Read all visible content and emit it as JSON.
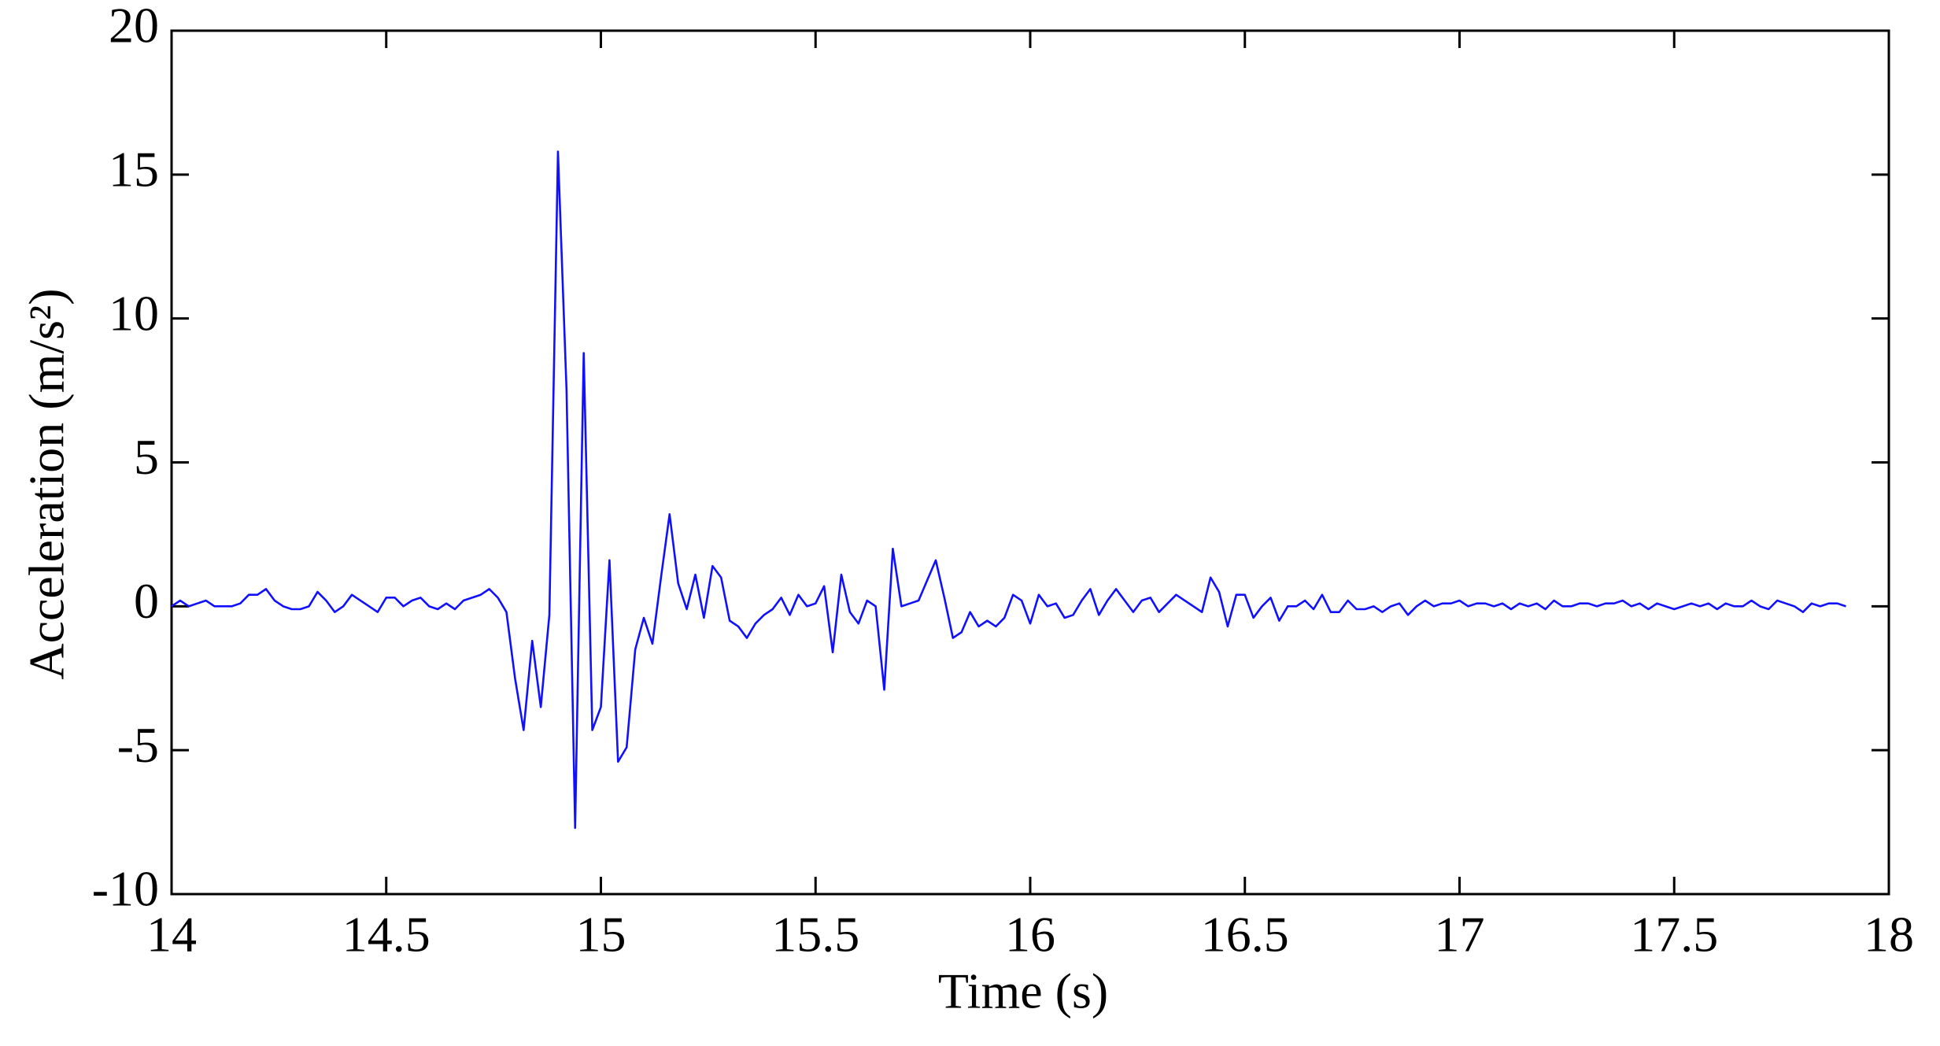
{
  "chart_data": {
    "type": "line",
    "xlabel": "Time (s)",
    "ylabel": "Acceleration (m/s²)",
    "xlim": [
      14,
      18
    ],
    "xticks": [
      14,
      14.5,
      15,
      15.5,
      16,
      16.5,
      17,
      17.5,
      18
    ],
    "ylim": [
      -10,
      20
    ],
    "yticks": [
      -10,
      -5,
      0,
      5,
      10,
      15,
      20
    ],
    "grid": false,
    "x": [
      14,
      14.02,
      14.04,
      14.06,
      14.08,
      14.1,
      14.12,
      14.14,
      14.16,
      14.18,
      14.2,
      14.22,
      14.24,
      14.26,
      14.28,
      14.3,
      14.32,
      14.34,
      14.36,
      14.38,
      14.4,
      14.42,
      14.44,
      14.46,
      14.48,
      14.5,
      14.52,
      14.54,
      14.56,
      14.58,
      14.6,
      14.62,
      14.64,
      14.66,
      14.68,
      14.7,
      14.72,
      14.74,
      14.76,
      14.78,
      14.8,
      14.82,
      14.84,
      14.86,
      14.88,
      14.9,
      14.92,
      14.94,
      14.96,
      14.98,
      15,
      15.02,
      15.04,
      15.06,
      15.08,
      15.1,
      15.12,
      15.14,
      15.16,
      15.18,
      15.2,
      15.22,
      15.24,
      15.26,
      15.28,
      15.3,
      15.32,
      15.34,
      15.36,
      15.38,
      15.4,
      15.42,
      15.44,
      15.46,
      15.48,
      15.5,
      15.52,
      15.54,
      15.56,
      15.58,
      15.6,
      15.62,
      15.64,
      15.66,
      15.68,
      15.7,
      15.72,
      15.74,
      15.76,
      15.78,
      15.8,
      15.82,
      15.84,
      15.86,
      15.88,
      15.9,
      15.92,
      15.94,
      15.96,
      15.98,
      16,
      16.02,
      16.04,
      16.06,
      16.08,
      16.1,
      16.12,
      16.14,
      16.16,
      16.18,
      16.2,
      16.22,
      16.24,
      16.26,
      16.28,
      16.3,
      16.32,
      16.34,
      16.36,
      16.38,
      16.4,
      16.42,
      16.44,
      16.46,
      16.48,
      16.5,
      16.52,
      16.54,
      16.56,
      16.58,
      16.6,
      16.62,
      16.64,
      16.66,
      16.68,
      16.7,
      16.72,
      16.74,
      16.76,
      16.78,
      16.8,
      16.82,
      16.84,
      16.86,
      16.88,
      16.9,
      16.92,
      16.94,
      16.96,
      16.98,
      17,
      17.02,
      17.04,
      17.06,
      17.08,
      17.1,
      17.12,
      17.14,
      17.16,
      17.18,
      17.2,
      17.22,
      17.24,
      17.26,
      17.28,
      17.3,
      17.32,
      17.34,
      17.36,
      17.38,
      17.4,
      17.42,
      17.44,
      17.46,
      17.48,
      17.5,
      17.52,
      17.54,
      17.56,
      17.58,
      17.6,
      17.62,
      17.64,
      17.66,
      17.68,
      17.7,
      17.72,
      17.74,
      17.76,
      17.78,
      17.8,
      17.82,
      17.84,
      17.86,
      17.88,
      17.9
    ],
    "series": [
      {
        "color": "#1010ff",
        "values": [
          0,
          0.2,
          0,
          0.1,
          0.2,
          0,
          0,
          0,
          0.1,
          0.4,
          0.4,
          0.6,
          0.2,
          0,
          -0.1,
          -0.1,
          0,
          0.5,
          0.2,
          -0.2,
          0,
          0.4,
          0.2,
          0,
          -0.2,
          0.3,
          0.3,
          0,
          0.2,
          0.3,
          0,
          -0.1,
          0.1,
          -0.1,
          0.2,
          0.3,
          0.4,
          0.6,
          0.3,
          -0.2,
          -2.5,
          -4.3,
          -1.2,
          -3.5,
          -0.3,
          15.8,
          7.5,
          -7.7,
          8.8,
          -4.3,
          -3.5,
          1.6,
          -5.4,
          -4.9,
          -1.5,
          -0.4,
          -1.3,
          1.0,
          3.2,
          0.8,
          -0.1,
          1.1,
          -0.4,
          1.4,
          1.0,
          -0.5,
          -0.7,
          -1.1,
          -0.6,
          -0.3,
          -0.1,
          0.3,
          -0.3,
          0.4,
          0,
          0.1,
          0.7,
          -1.6,
          1.1,
          -0.2,
          -0.6,
          0.2,
          0,
          -2.9,
          2.0,
          0,
          0.1,
          0.2,
          0.9,
          1.6,
          0.3,
          -1.1,
          -0.9,
          -0.2,
          -0.7,
          -0.5,
          -0.7,
          -0.4,
          0.4,
          0.2,
          -0.6,
          0.4,
          0,
          0.1,
          -0.4,
          -0.3,
          0.2,
          0.6,
          -0.3,
          0.2,
          0.6,
          0.2,
          -0.2,
          0.2,
          0.3,
          -0.2,
          0.1,
          0.4,
          0.2,
          0,
          -0.2,
          1.0,
          0.5,
          -0.7,
          0.4,
          0.4,
          -0.4,
          0,
          0.3,
          -0.5,
          0,
          0,
          0.2,
          -0.1,
          0.4,
          -0.2,
          -0.2,
          0.2,
          -0.1,
          -0.1,
          0,
          -0.2,
          0,
          0.1,
          -0.3,
          0,
          0.2,
          0,
          0.1,
          0.1,
          0.2,
          0,
          0.1,
          0.1,
          0,
          0.1,
          -0.1,
          0.1,
          0,
          0.1,
          -0.1,
          0.2,
          0,
          0,
          0.1,
          0.1,
          0,
          0.1,
          0.1,
          0.2,
          0,
          0.1,
          -0.1,
          0.1,
          0,
          -0.1,
          0,
          0.1,
          0,
          0.1,
          -0.1,
          0.1,
          0,
          0,
          0.2,
          0,
          -0.1,
          0.2,
          0.1,
          0,
          -0.2,
          0.1,
          0,
          0.1,
          0.1,
          0
        ]
      }
    ]
  }
}
